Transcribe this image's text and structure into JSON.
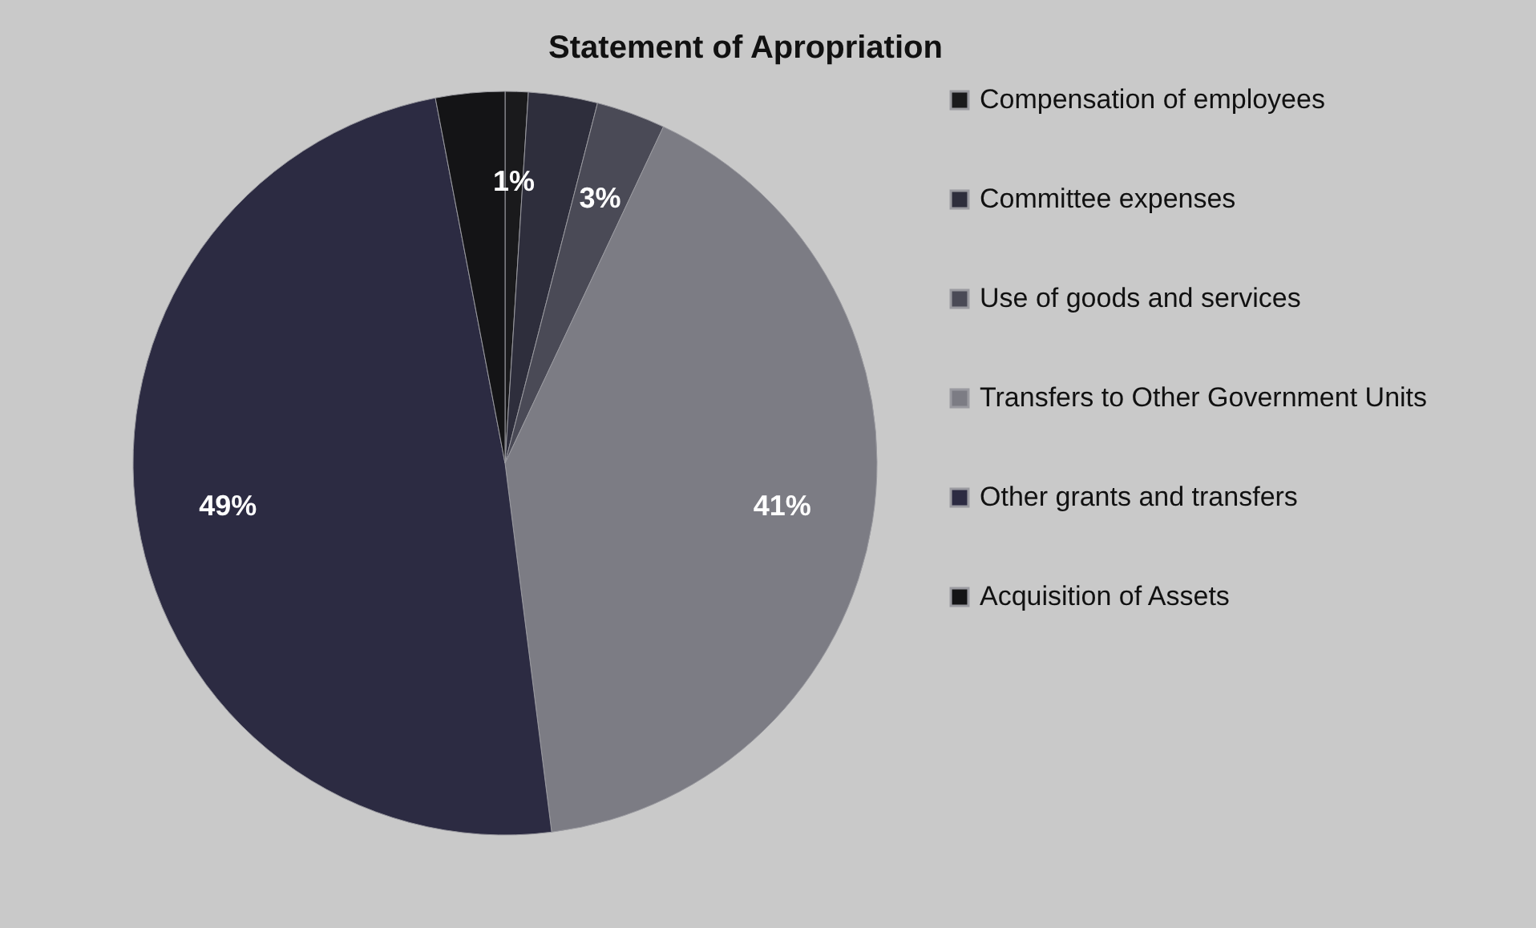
{
  "chart_data": {
    "type": "pie",
    "title": "Statement of Apropriation",
    "categories": [
      "Compensation of employees",
      "Committee expenses",
      "Use of goods and services",
      "Transfers to Other Government Units",
      "Other grants and transfers",
      "Acquisition of Assets"
    ],
    "values": [
      1,
      3,
      3,
      41,
      49,
      3
    ],
    "colors": [
      "#1a1a1c",
      "#2e2e3c",
      "#4a4a56",
      "#7c7c84",
      "#2c2b42",
      "#141416"
    ],
    "value_labels": [
      "1%",
      null,
      "3%",
      "41%",
      "49%",
      null
    ],
    "legend": "right"
  }
}
